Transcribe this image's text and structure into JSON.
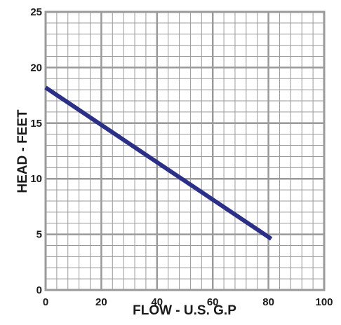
{
  "chart_data": {
    "type": "line",
    "title": "",
    "xlabel": "FLOW -  U.S. G.P",
    "ylabel": "HEAD - FEET",
    "xlim": [
      0,
      100
    ],
    "ylim": [
      0,
      25
    ],
    "x_ticks": [
      "0",
      "20",
      "40",
      "60",
      "80",
      "100"
    ],
    "y_ticks": [
      "0",
      "5",
      "10",
      "15",
      "20",
      "25"
    ],
    "x_tick_values": [
      0,
      20,
      40,
      60,
      80,
      100
    ],
    "y_tick_values": [
      0,
      5,
      10,
      15,
      20,
      25
    ],
    "grid": true,
    "grid_minor_x_step": 4,
    "grid_minor_y_step": 1,
    "series": [
      {
        "x": [
          0,
          81
        ],
        "y": [
          18.2,
          4.6
        ],
        "color": "#2b2f86"
      }
    ]
  },
  "colors": {
    "grid": "#9a9a9a",
    "frame": "#9a9a9a",
    "line": "#2b2f86"
  }
}
